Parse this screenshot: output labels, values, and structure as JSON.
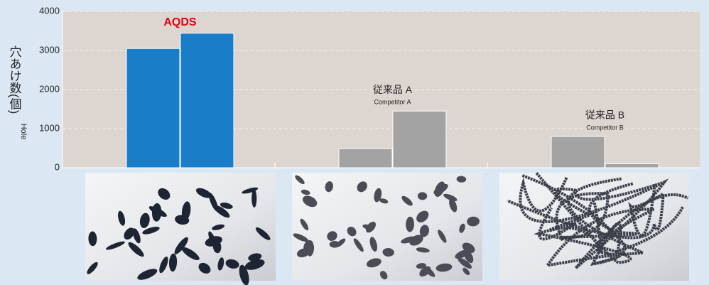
{
  "chart_data": {
    "type": "grouped-bar",
    "y_label": "穴あけ数(個)",
    "y_label_en": "Hole",
    "categories": [
      "AQDS",
      "従来品 A",
      "従来品 B"
    ],
    "category_sublabels": [
      null,
      "Competitor A",
      "Competitor B"
    ],
    "values": [
      [
        3050,
        3440
      ],
      [
        490,
        1450
      ],
      [
        800,
        100
      ]
    ],
    "colors": [
      "#1a7dc8",
      "#a3a3a3",
      "#a3a3a3"
    ],
    "label_colors": [
      "#e60012",
      "#222222",
      "#222222"
    ],
    "ylim": [
      0,
      4000
    ],
    "yticks": [
      0,
      1000,
      2000,
      3000,
      4000
    ],
    "grid": true
  }
}
